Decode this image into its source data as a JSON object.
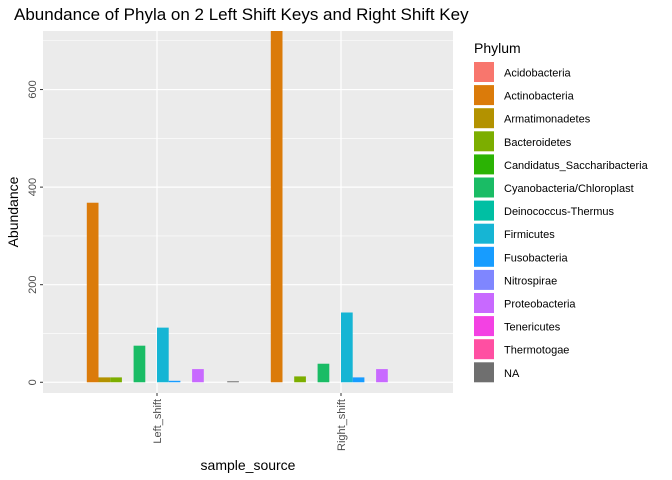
{
  "chart_data": {
    "type": "bar",
    "title": "Abundance of Phyla on 2 Left Shift Keys and Right Shift Key",
    "xlabel": "sample_source",
    "ylabel": "Abundance",
    "categories": [
      "Left_shift",
      "Right_shift"
    ],
    "ylim": [
      -22,
      720
    ],
    "yticks": [
      0,
      200,
      400,
      600
    ],
    "grid": true,
    "legend": {
      "title": "Phylum",
      "position": "right"
    },
    "series": [
      {
        "name": "Acidobacteria",
        "color": "#F8766D",
        "values": [
          0,
          0
        ]
      },
      {
        "name": "Actinobacteria",
        "color": "#DB8E00",
        "values": [
          368,
          720
        ]
      },
      {
        "name": "Armatimonadetes",
        "color": "#AEA200",
        "values": [
          10,
          0
        ]
      },
      {
        "name": "Bacteroidetes",
        "color": "#64B200",
        "values": [
          10,
          12
        ]
      },
      {
        "name": "Candidatus_Saccharibacteria",
        "color": "#00BD5C",
        "values": [
          0,
          0
        ]
      },
      {
        "name": "Cyanobacteria/Chloroplast",
        "color": "#00C1A7",
        "values": [
          75,
          38
        ]
      },
      {
        "name": "Deinococcus-Thermus",
        "color": "#00BADE",
        "values": [
          0,
          0
        ]
      },
      {
        "name": "Firmicutes",
        "color": "#00A6FF",
        "values": [
          112,
          143
        ]
      },
      {
        "name": "Fusobacteria",
        "color": "#B385FF",
        "values": [
          3,
          10
        ]
      },
      {
        "name": "Nitrospirae",
        "color": "#EF67EB",
        "values": [
          0,
          0
        ]
      },
      {
        "name": "Proteobacteria",
        "color": "#FF63B6",
        "values": [
          27,
          27
        ]
      },
      {
        "name": "Tenericutes",
        "color": "#FF4FB5",
        "values": [
          0,
          0
        ]
      },
      {
        "name": "Thermotogae",
        "color": "#FF5FA7",
        "values": [
          0,
          0
        ]
      },
      {
        "name": "NA",
        "color": "#7F7F7F",
        "values": [
          2,
          0
        ]
      }
    ],
    "legend_colors": [
      "#F8766D",
      "#DB7B0A",
      "#B39200",
      "#7CAE00",
      "#2BB304",
      "#1ABC65",
      "#00BFA3",
      "#16B5D4",
      "#179CFF",
      "#7F86FF",
      "#C869FF",
      "#F341E3",
      "#FF4FA2",
      "#6F6F6F"
    ],
    "bar_colors": [
      "#F8766D",
      "#DB7B0A",
      "#B39200",
      "#7CAE00",
      "#2BB304",
      "#1ABC65",
      "#00BFA3",
      "#16B5D4",
      "#179CFF",
      "#7F86FF",
      "#C869FF",
      "#F341E3",
      "#FF4FA2",
      "#6F6F6F"
    ]
  }
}
